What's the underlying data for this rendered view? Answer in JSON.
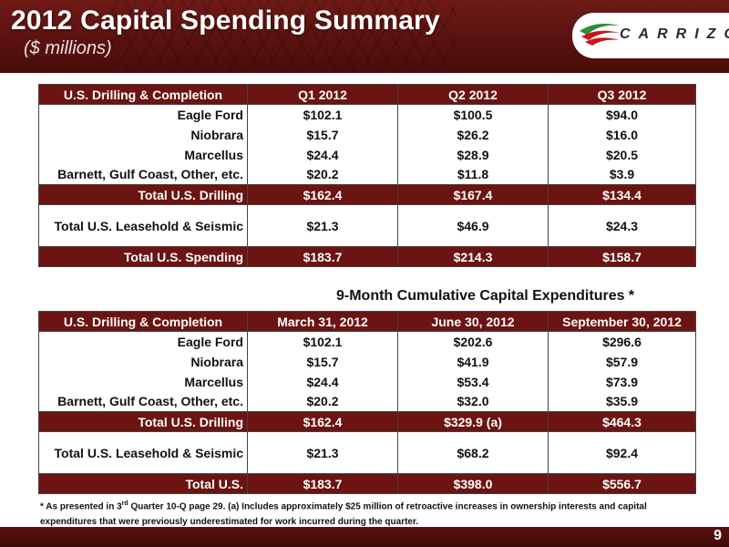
{
  "header": {
    "title": "2012 Capital Spending Summary",
    "subtitle": "($ millions)",
    "logo_text": "CARRIZO"
  },
  "quarterly": {
    "columns": [
      "U.S. Drilling & Completion",
      "Q1 2012",
      "Q2 2012",
      "Q3 2012"
    ],
    "rows": [
      [
        "Eagle Ford",
        "$102.1",
        "$100.5",
        "$94.0"
      ],
      [
        "Niobrara",
        "$15.7",
        "$26.2",
        "$16.0"
      ],
      [
        "Marcellus",
        "$24.4",
        "$28.9",
        "$20.5"
      ],
      [
        "Barnett, Gulf Coast, Other, etc.",
        "$20.2",
        "$11.8",
        "$3.9"
      ]
    ],
    "total_drilling": [
      "Total U.S. Drilling",
      "$162.4",
      "$167.4",
      "$134.4"
    ],
    "leasehold": [
      "Total U.S. Leasehold & Seismic",
      "$21.3",
      "$46.9",
      "$24.3"
    ],
    "total_spending": [
      "Total U.S. Spending",
      "$183.7",
      "$214.3",
      "$158.7"
    ]
  },
  "cumulative": {
    "title": "9-Month Cumulative Capital Expenditures *",
    "columns": [
      "U.S. Drilling & Completion",
      "March 31, 2012",
      "June 30, 2012",
      "September 30, 2012"
    ],
    "rows": [
      [
        "Eagle Ford",
        "$102.1",
        "$202.6",
        "$296.6"
      ],
      [
        "Niobrara",
        "$15.7",
        "$41.9",
        "$57.9"
      ],
      [
        "Marcellus",
        "$24.4",
        "$53.4",
        "$73.9"
      ],
      [
        "Barnett, Gulf Coast, Other, etc.",
        "$20.2",
        "$32.0",
        "$35.9"
      ]
    ],
    "total_drilling": [
      "Total U.S. Drilling",
      "$162.4",
      "$329.9 (a)",
      "$464.3"
    ],
    "leasehold": [
      "Total U.S. Leasehold & Seismic",
      "$21.3",
      "$68.2",
      "$92.4"
    ],
    "total": [
      "Total U.S.",
      "$183.7",
      "$398.0",
      "$556.7"
    ]
  },
  "footnote": {
    "part1": "* As presented in 3",
    "sup": "rd",
    "part2": " Quarter 10-Q page 29.  (a) Includes approximately $25 million of retroactive increases in ownership interests and  capital expenditures that were previously underestimated for work incurred during the quarter."
  },
  "page_number": "9",
  "colors": {
    "brand_maroon": "#6b1411",
    "logo_green": "#2e8b3a",
    "logo_red": "#c8161d"
  }
}
